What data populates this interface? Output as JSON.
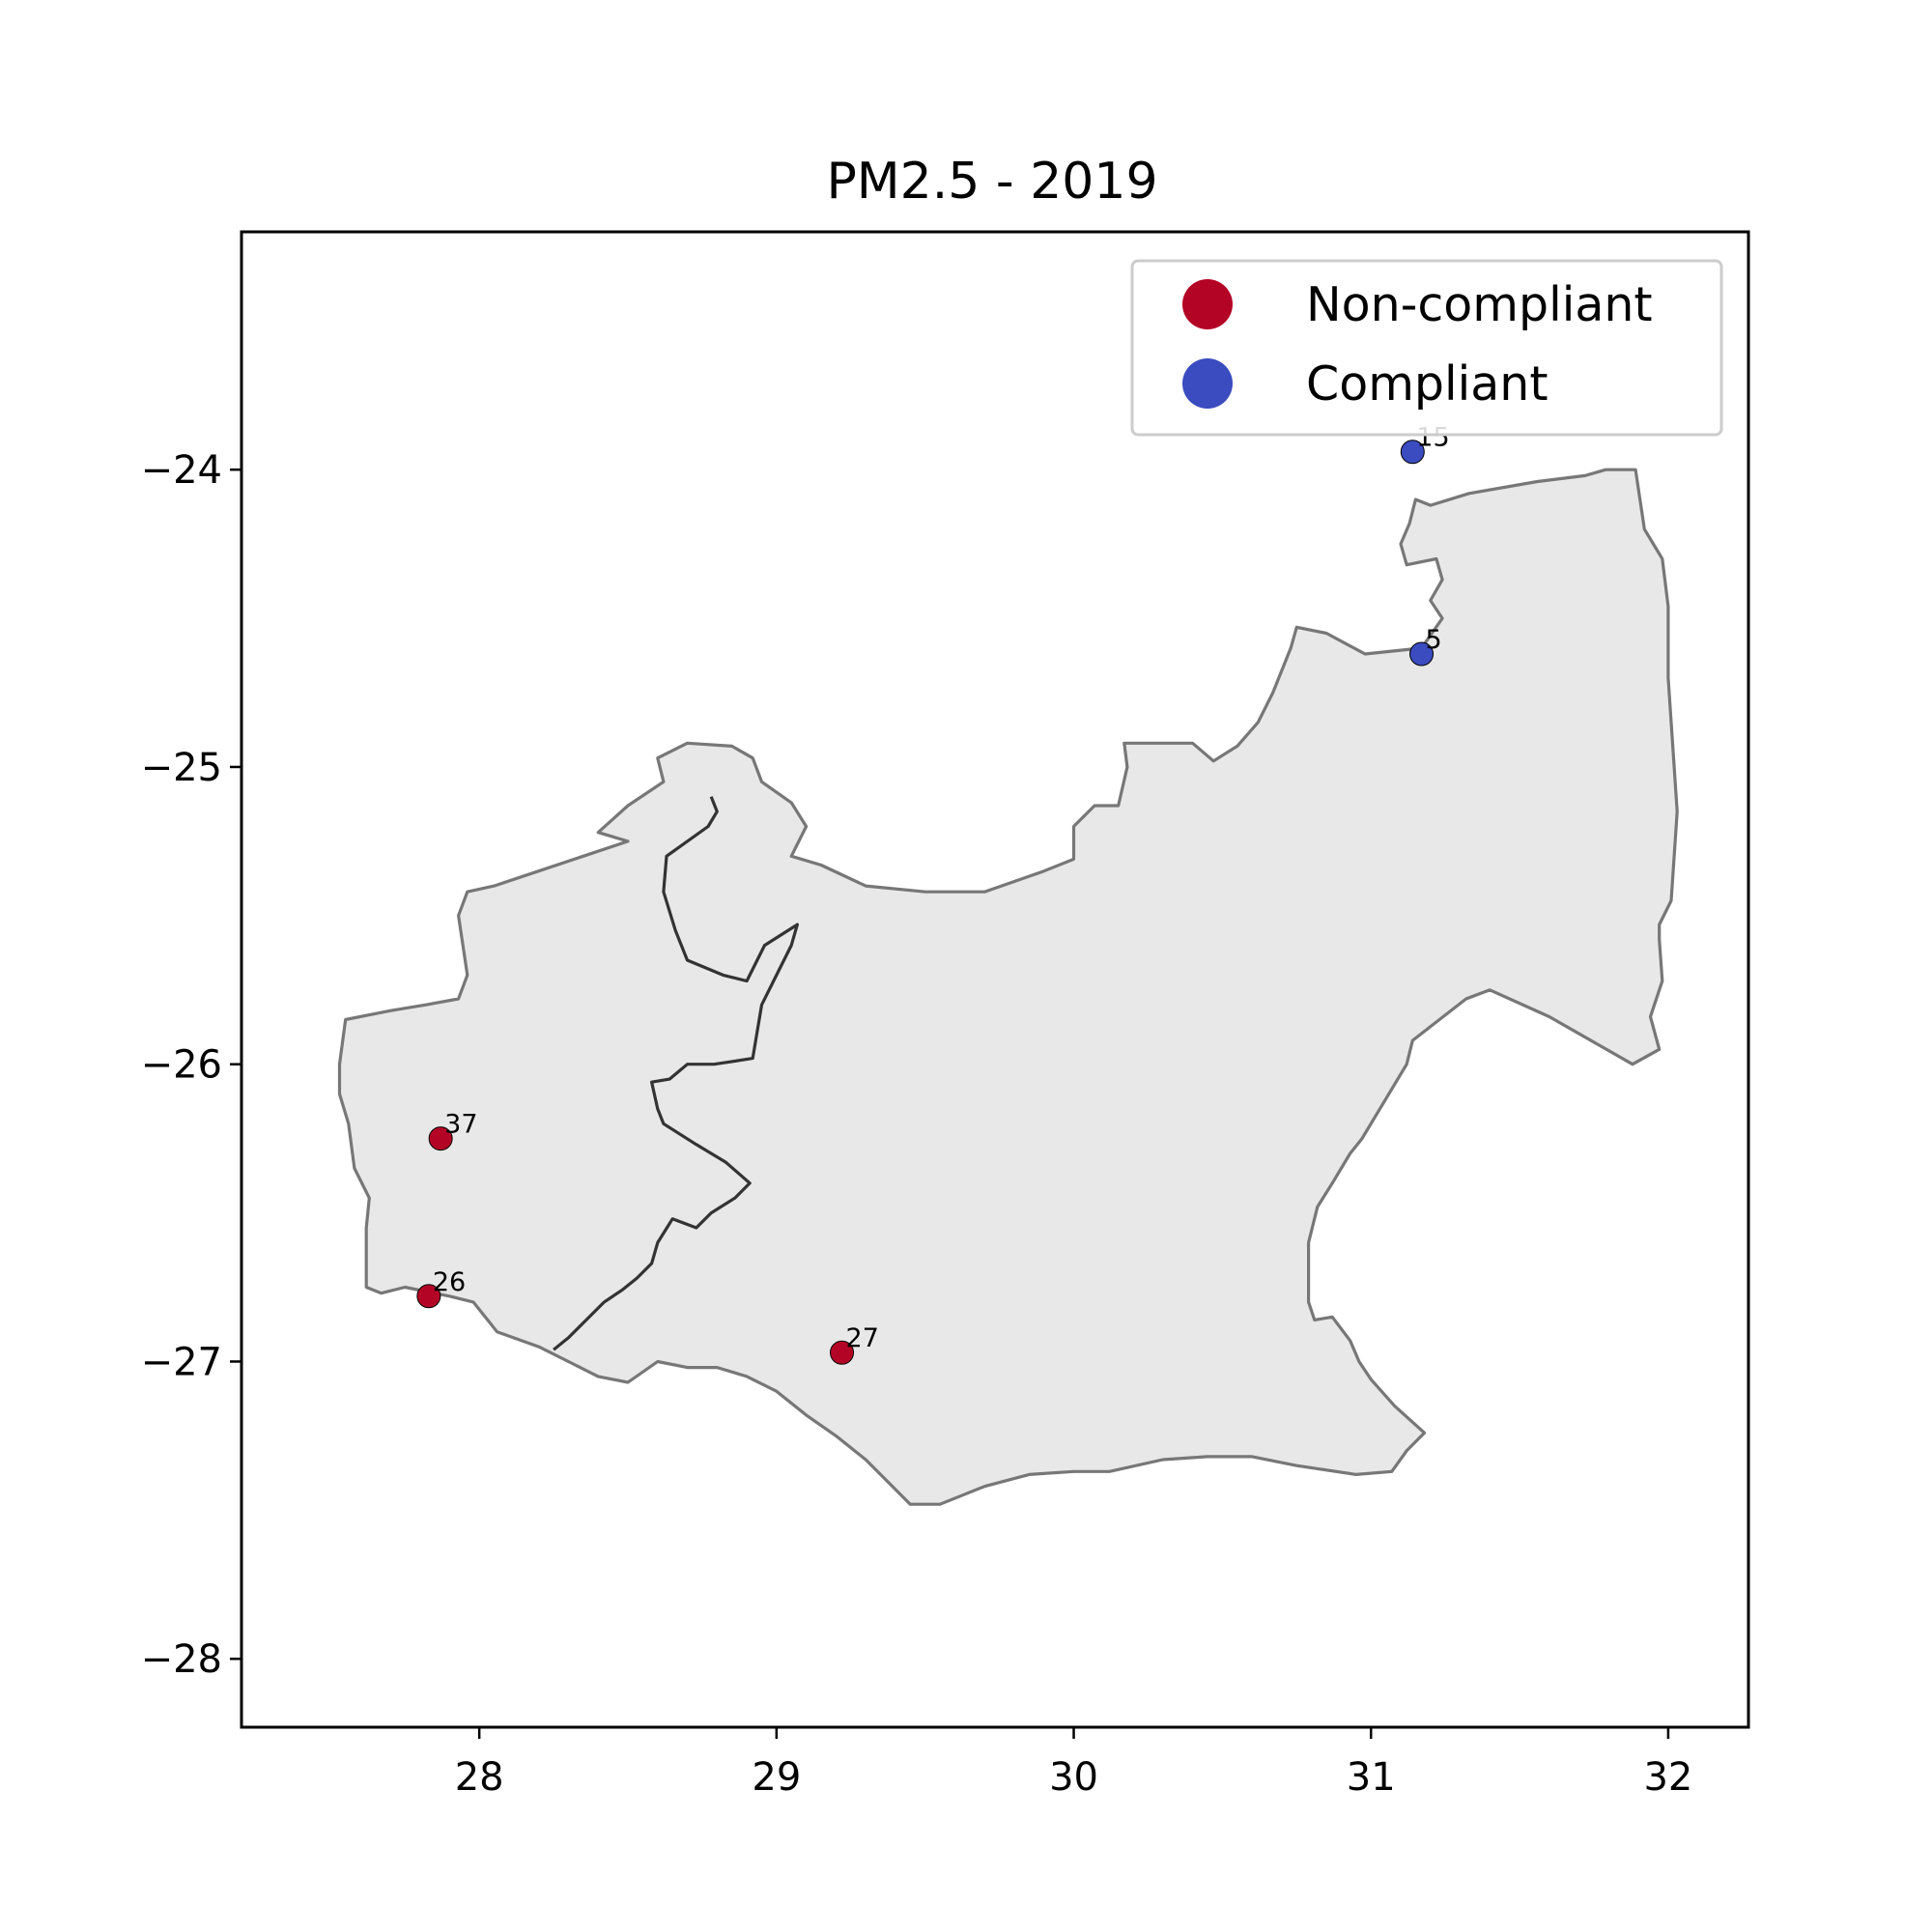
{
  "chart_data": {
    "type": "scatter",
    "title": "PM2.5 - 2019",
    "xlabel": "",
    "ylabel": "",
    "xlim": [
      27.2,
      32.27
    ],
    "ylim": [
      -28.23,
      -23.2
    ],
    "xticks": [
      {
        "value": 28,
        "label": "28"
      },
      {
        "value": 29,
        "label": "29"
      },
      {
        "value": 30,
        "label": "30"
      },
      {
        "value": 31,
        "label": "31"
      },
      {
        "value": 32,
        "label": "32"
      }
    ],
    "yticks": [
      {
        "value": -24,
        "label": "−24"
      },
      {
        "value": -25,
        "label": "−25"
      },
      {
        "value": -26,
        "label": "−26"
      },
      {
        "value": -27,
        "label": "−27"
      },
      {
        "value": -28,
        "label": "−28"
      }
    ],
    "grid": false,
    "legend_position": "top-right",
    "legend": [
      {
        "label": "Non-compliant",
        "color": "#b40426"
      },
      {
        "label": "Compliant",
        "color": "#3b4cc0"
      }
    ],
    "region_fill": "#e8e8e8",
    "region_edge": "#777777",
    "inner_border_color": "#333333",
    "series": [
      {
        "name": "Non-compliant",
        "color": "#b40426",
        "points": [
          {
            "x": 27.87,
            "y": -26.25,
            "label": "37"
          },
          {
            "x": 27.83,
            "y": -26.78,
            "label": "26"
          },
          {
            "x": 29.22,
            "y": -26.97,
            "label": "27"
          }
        ]
      },
      {
        "name": "Compliant",
        "color": "#3b4cc0",
        "points": [
          {
            "x": 31.14,
            "y": -23.94,
            "label": "15"
          },
          {
            "x": 31.17,
            "y": -24.62,
            "label": "5"
          }
        ]
      }
    ],
    "region_outline": [
      [
        31.2,
        -24.12
      ],
      [
        31.33,
        -24.08
      ],
      [
        31.56,
        -24.04
      ],
      [
        31.72,
        -24.02
      ],
      [
        31.79,
        -24.0
      ],
      [
        31.89,
        -24.0
      ],
      [
        31.92,
        -24.2
      ],
      [
        31.98,
        -24.3
      ],
      [
        32.0,
        -24.46
      ],
      [
        32.0,
        -24.7
      ],
      [
        32.02,
        -25.0
      ],
      [
        32.03,
        -25.15
      ],
      [
        32.01,
        -25.45
      ],
      [
        31.97,
        -25.53
      ],
      [
        31.97,
        -25.58
      ],
      [
        31.98,
        -25.72
      ],
      [
        31.94,
        -25.84
      ],
      [
        31.97,
        -25.95
      ],
      [
        31.88,
        -26.0
      ],
      [
        31.6,
        -25.84
      ],
      [
        31.4,
        -25.75
      ],
      [
        31.32,
        -25.78
      ],
      [
        31.14,
        -25.92
      ],
      [
        31.12,
        -26.0
      ],
      [
        30.97,
        -26.25
      ],
      [
        30.93,
        -26.3
      ],
      [
        30.87,
        -26.4
      ],
      [
        30.82,
        -26.48
      ],
      [
        30.79,
        -26.6
      ],
      [
        30.79,
        -26.8
      ],
      [
        30.81,
        -26.86
      ],
      [
        30.87,
        -26.85
      ],
      [
        30.93,
        -26.93
      ],
      [
        30.96,
        -27.0
      ],
      [
        31.0,
        -27.06
      ],
      [
        31.08,
        -27.15
      ],
      [
        31.18,
        -27.24
      ],
      [
        31.12,
        -27.3
      ],
      [
        31.07,
        -27.37
      ],
      [
        30.95,
        -27.38
      ],
      [
        30.75,
        -27.35
      ],
      [
        30.6,
        -27.32
      ],
      [
        30.45,
        -27.32
      ],
      [
        30.3,
        -27.33
      ],
      [
        30.12,
        -27.37
      ],
      [
        30.0,
        -27.37
      ],
      [
        29.85,
        -27.38
      ],
      [
        29.7,
        -27.42
      ],
      [
        29.55,
        -27.48
      ],
      [
        29.45,
        -27.48
      ],
      [
        29.3,
        -27.33
      ],
      [
        29.2,
        -27.25
      ],
      [
        29.1,
        -27.18
      ],
      [
        29.0,
        -27.1
      ],
      [
        28.9,
        -27.05
      ],
      [
        28.8,
        -27.02
      ],
      [
        28.7,
        -27.02
      ],
      [
        28.6,
        -27.0
      ],
      [
        28.5,
        -27.07
      ],
      [
        28.4,
        -27.05
      ],
      [
        28.3,
        -27.0
      ],
      [
        28.2,
        -26.95
      ],
      [
        28.06,
        -26.9
      ],
      [
        27.98,
        -26.8
      ],
      [
        27.9,
        -26.78
      ],
      [
        27.75,
        -26.75
      ],
      [
        27.67,
        -26.77
      ],
      [
        27.62,
        -26.75
      ],
      [
        27.62,
        -26.55
      ],
      [
        27.63,
        -26.45
      ],
      [
        27.58,
        -26.35
      ],
      [
        27.56,
        -26.2
      ],
      [
        27.53,
        -26.1
      ],
      [
        27.53,
        -26.0
      ],
      [
        27.55,
        -25.85
      ],
      [
        27.7,
        -25.82
      ],
      [
        27.82,
        -25.8
      ],
      [
        27.93,
        -25.78
      ],
      [
        27.96,
        -25.7
      ],
      [
        27.93,
        -25.5
      ],
      [
        27.96,
        -25.42
      ],
      [
        28.05,
        -25.4
      ],
      [
        28.2,
        -25.35
      ],
      [
        28.35,
        -25.3
      ],
      [
        28.5,
        -25.25
      ],
      [
        28.4,
        -25.22
      ],
      [
        28.5,
        -25.13
      ],
      [
        28.62,
        -25.05
      ],
      [
        28.6,
        -24.97
      ],
      [
        28.7,
        -24.92
      ],
      [
        28.85,
        -24.93
      ],
      [
        28.92,
        -24.97
      ],
      [
        28.95,
        -25.05
      ],
      [
        29.05,
        -25.12
      ],
      [
        29.1,
        -25.2
      ],
      [
        29.05,
        -25.3
      ],
      [
        29.15,
        -25.33
      ],
      [
        29.3,
        -25.4
      ],
      [
        29.5,
        -25.42
      ],
      [
        29.7,
        -25.42
      ],
      [
        29.9,
        -25.35
      ],
      [
        30.0,
        -25.31
      ],
      [
        30.0,
        -25.2
      ],
      [
        30.07,
        -25.13
      ],
      [
        30.15,
        -25.13
      ],
      [
        30.18,
        -25.0
      ],
      [
        30.17,
        -24.92
      ],
      [
        30.4,
        -24.92
      ],
      [
        30.47,
        -24.98
      ],
      [
        30.55,
        -24.93
      ],
      [
        30.62,
        -24.85
      ],
      [
        30.67,
        -24.75
      ],
      [
        30.73,
        -24.6
      ],
      [
        30.75,
        -24.53
      ],
      [
        30.85,
        -24.55
      ],
      [
        30.98,
        -24.62
      ],
      [
        31.17,
        -24.6
      ],
      [
        31.24,
        -24.5
      ],
      [
        31.2,
        -24.44
      ],
      [
        31.24,
        -24.37
      ],
      [
        31.22,
        -24.3
      ],
      [
        31.12,
        -24.32
      ],
      [
        31.1,
        -24.25
      ],
      [
        31.13,
        -24.18
      ],
      [
        31.15,
        -24.1
      ],
      [
        31.2,
        -24.12
      ]
    ],
    "inner_border": [
      [
        28.78,
        -25.1
      ],
      [
        28.8,
        -25.15
      ],
      [
        28.77,
        -25.2
      ],
      [
        28.63,
        -25.3
      ],
      [
        28.62,
        -25.42
      ],
      [
        28.66,
        -25.55
      ],
      [
        28.7,
        -25.65
      ],
      [
        28.82,
        -25.7
      ],
      [
        28.9,
        -25.72
      ],
      [
        28.96,
        -25.6
      ],
      [
        29.07,
        -25.53
      ],
      [
        29.05,
        -25.6
      ],
      [
        28.99,
        -25.72
      ],
      [
        28.95,
        -25.8
      ],
      [
        28.92,
        -25.98
      ],
      [
        28.79,
        -26.0
      ],
      [
        28.7,
        -26.0
      ],
      [
        28.64,
        -26.05
      ],
      [
        28.58,
        -26.06
      ],
      [
        28.6,
        -26.15
      ],
      [
        28.62,
        -26.2
      ],
      [
        28.73,
        -26.27
      ],
      [
        28.83,
        -26.33
      ],
      [
        28.91,
        -26.4
      ],
      [
        28.86,
        -26.45
      ],
      [
        28.78,
        -26.5
      ],
      [
        28.73,
        -26.55
      ],
      [
        28.65,
        -26.52
      ],
      [
        28.6,
        -26.6
      ],
      [
        28.58,
        -26.67
      ],
      [
        28.53,
        -26.72
      ],
      [
        28.48,
        -26.76
      ],
      [
        28.42,
        -26.8
      ],
      [
        28.3,
        -26.92
      ],
      [
        28.25,
        -26.96
      ]
    ]
  }
}
